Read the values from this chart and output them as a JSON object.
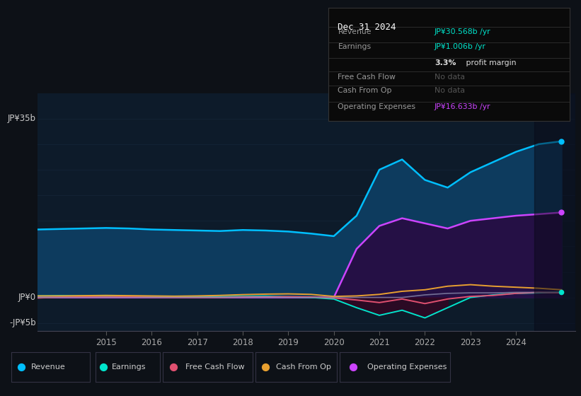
{
  "bg_color": "#0d1117",
  "plot_bg_color": "#0d1b2a",
  "grid_color": "#1a2d44",
  "years_x": [
    2013.0,
    2013.5,
    2014.0,
    2014.5,
    2015.0,
    2015.5,
    2016.0,
    2016.5,
    2017.0,
    2017.5,
    2018.0,
    2018.5,
    2019.0,
    2019.5,
    2020.0,
    2020.5,
    2021.0,
    2021.5,
    2022.0,
    2022.5,
    2023.0,
    2023.5,
    2024.0,
    2024.5,
    2025.0
  ],
  "revenue": [
    13.2,
    13.3,
    13.4,
    13.5,
    13.6,
    13.5,
    13.3,
    13.2,
    13.1,
    13.0,
    13.2,
    13.1,
    12.9,
    12.5,
    12.0,
    16.0,
    25.0,
    27.0,
    23.0,
    21.5,
    24.5,
    26.5,
    28.5,
    30.0,
    30.568
  ],
  "operating_expenses": [
    0.0,
    0.0,
    0.0,
    0.0,
    0.0,
    0.0,
    0.0,
    0.0,
    0.0,
    0.0,
    0.0,
    0.0,
    0.0,
    0.0,
    0.0,
    9.5,
    14.0,
    15.5,
    14.5,
    13.5,
    15.0,
    15.5,
    16.0,
    16.3,
    16.633
  ],
  "earnings": [
    0.3,
    0.3,
    0.35,
    0.3,
    0.25,
    0.2,
    0.15,
    0.1,
    0.1,
    0.15,
    0.2,
    0.25,
    0.1,
    0.0,
    -0.3,
    -2.0,
    -3.5,
    -2.5,
    -4.0,
    -2.0,
    0.0,
    0.5,
    0.8,
    0.9,
    1.006
  ],
  "free_cash_flow": [
    -0.1,
    -0.1,
    0.05,
    0.1,
    0.1,
    0.1,
    0.05,
    0.0,
    0.0,
    0.0,
    0.1,
    0.1,
    0.15,
    0.1,
    -0.1,
    -0.5,
    -1.0,
    -0.3,
    -1.2,
    -0.3,
    0.2,
    0.4,
    0.8,
    1.0,
    0.9
  ],
  "cash_from_op": [
    0.3,
    0.3,
    0.3,
    0.35,
    0.4,
    0.35,
    0.3,
    0.25,
    0.3,
    0.4,
    0.55,
    0.65,
    0.7,
    0.6,
    0.2,
    0.3,
    0.6,
    1.2,
    1.5,
    2.2,
    2.5,
    2.2,
    2.0,
    1.8,
    1.5
  ],
  "unknown_gray": [
    0.0,
    0.0,
    0.0,
    0.0,
    0.0,
    0.0,
    0.0,
    0.0,
    0.0,
    0.0,
    0.0,
    0.0,
    0.0,
    0.0,
    0.0,
    0.0,
    0.0,
    0.0,
    0.5,
    0.8,
    0.9,
    0.9,
    1.0,
    1.0,
    1.0
  ],
  "revenue_color": "#00bfff",
  "revenue_fill": "#0d3b5e",
  "earnings_color": "#00e5cc",
  "free_cash_flow_color": "#e05070",
  "cash_from_op_color": "#e8a030",
  "operating_expenses_color": "#cc44ff",
  "operating_expenses_fill": "#251045",
  "gray_color": "#8888aa",
  "ylim_min": -6.5,
  "ylim_max": 40,
  "xlabel_years": [
    2015,
    2016,
    2017,
    2018,
    2019,
    2020,
    2021,
    2022,
    2023,
    2024
  ],
  "legend_items": [
    "Revenue",
    "Earnings",
    "Free Cash Flow",
    "Cash From Op",
    "Operating Expenses"
  ],
  "legend_colors": [
    "#00bfff",
    "#00e5cc",
    "#e05070",
    "#e8a030",
    "#cc44ff"
  ]
}
